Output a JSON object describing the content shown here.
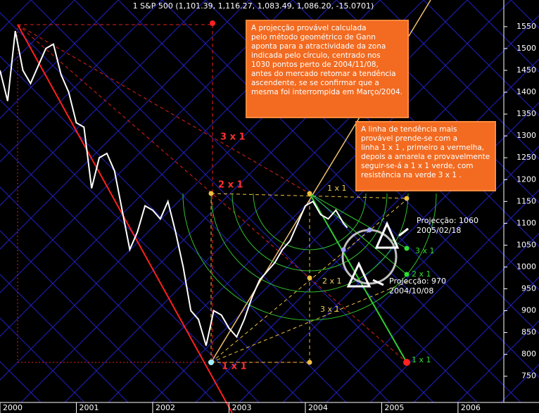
{
  "chart_data": {
    "type": "line",
    "title": "1 S&P 500 (1,101.39, 1,116.27, 1,083.49, 1,086.20, -15.0701)",
    "x": [
      2000.0,
      2000.1,
      2000.2,
      2000.3,
      2000.4,
      2000.5,
      2000.6,
      2000.7,
      2000.8,
      2000.9,
      2001.0,
      2001.1,
      2001.2,
      2001.3,
      2001.4,
      2001.5,
      2001.6,
      2001.7,
      2001.8,
      2001.9,
      2002.0,
      2002.1,
      2002.2,
      2002.3,
      2002.4,
      2002.5,
      2002.6,
      2002.7,
      2002.8,
      2002.9,
      2003.0,
      2003.1,
      2003.2,
      2003.3,
      2003.4,
      2003.5,
      2003.6,
      2003.7,
      2003.8,
      2003.9,
      2004.0,
      2004.1,
      2004.2,
      2004.3,
      2004.4,
      2004.5,
      2004.55
    ],
    "series": [
      {
        "name": "S&P 500",
        "color": "#ffffff",
        "values": [
          1450,
          1380,
          1540,
          1450,
          1420,
          1460,
          1500,
          1510,
          1440,
          1400,
          1330,
          1320,
          1180,
          1250,
          1260,
          1220,
          1130,
          1040,
          1080,
          1140,
          1130,
          1110,
          1150,
          1080,
          1000,
          900,
          880,
          820,
          900,
          890,
          860,
          840,
          880,
          930,
          970,
          990,
          1010,
          1040,
          1060,
          1100,
          1140,
          1150,
          1120,
          1110,
          1130,
          1100,
          1090
        ]
      }
    ],
    "xlim": [
      2000,
      2006.6
    ],
    "xticks": [
      2000,
      2001,
      2002,
      2003,
      2004,
      2005,
      2006
    ],
    "ylim": [
      690,
      1611
    ],
    "yticks": [
      750,
      800,
      850,
      900,
      950,
      1000,
      1050,
      1100,
      1150,
      1200,
      1250,
      1300,
      1350,
      1400,
      1450,
      1500,
      1550
    ],
    "labels": [
      "3 x 1",
      "2 x 1",
      "1 x 1",
      "1 x 1",
      "2 x 1",
      "3 x 1",
      "3 x 1",
      "2 x 1",
      "1 x 1",
      "Projecção: 1060",
      "2005/02/18",
      "Projecção: 970",
      "2004/10/08"
    ],
    "notes": [
      {
        "lines": [
          "A projecção provável calculada",
          "pelo método geométrico de Gann",
          "aponta para a atractividade da zona",
          "indicada pelo círculo, centrado nos",
          "1030 pontos perto de 2004/11/08,",
          "antes do mercado retomar a tendência",
          "ascendente, se se confirmar que a",
          "mesma foi interrompida em Março/2004."
        ]
      },
      {
        "lines": [
          "A linha de tendência mais",
          "provável prende-se com a",
          "linha 1 x 1 , primeiro a vermelha,",
          "depois a amarela e provavelmente",
          "seguir-se-á a 1 x 1 verde, com",
          "resistência na verde 3 x 1 ."
        ]
      }
    ]
  }
}
